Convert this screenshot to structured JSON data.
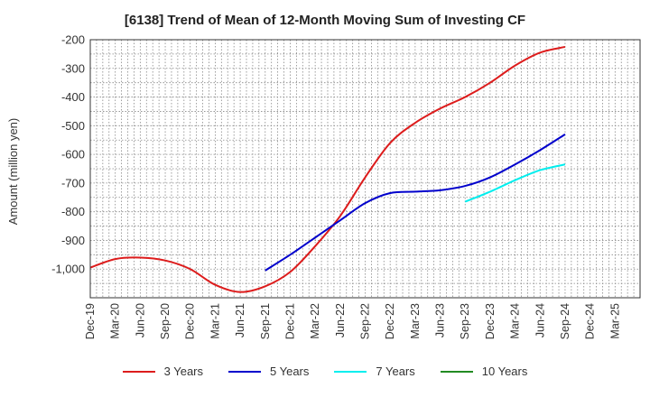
{
  "chart_data": {
    "type": "line",
    "title": "[6138]  Trend of Mean of 12-Month Moving Sum of Investing CF",
    "xlabel": "",
    "ylabel": "Amount (million yen)",
    "ylim": [
      -1100,
      -200
    ],
    "yticks": [
      {
        "value": -200,
        "label": "-200"
      },
      {
        "value": -300,
        "label": "-300"
      },
      {
        "value": -400,
        "label": "-400"
      },
      {
        "value": -500,
        "label": "-500"
      },
      {
        "value": -600,
        "label": "-600"
      },
      {
        "value": -700,
        "label": "-700"
      },
      {
        "value": -800,
        "label": "-800"
      },
      {
        "value": -900,
        "label": "-900"
      },
      {
        "value": -1000,
        "label": "-1,000"
      }
    ],
    "categories": [
      "Dec-19",
      "Mar-20",
      "Jun-20",
      "Sep-20",
      "Dec-20",
      "Mar-21",
      "Jun-21",
      "Sep-21",
      "Dec-21",
      "Mar-22",
      "Jun-22",
      "Sep-22",
      "Dec-22",
      "Mar-23",
      "Jun-23",
      "Sep-23",
      "Dec-23",
      "Mar-24",
      "Jun-24",
      "Sep-24",
      "Dec-24",
      "Mar-25"
    ],
    "grid": true,
    "legend_position": "bottom",
    "series": [
      {
        "name": "3 Years",
        "color": "#dd1c1c",
        "values": [
          -995,
          -965,
          -960,
          -970,
          -1000,
          -1055,
          -1080,
          -1060,
          -1010,
          -920,
          -815,
          -680,
          -560,
          -490,
          -440,
          -400,
          -350,
          -290,
          -245,
          -225,
          null,
          null
        ]
      },
      {
        "name": "5 Years",
        "color": "#0000cc",
        "values": [
          null,
          null,
          null,
          null,
          null,
          null,
          null,
          -1005,
          -950,
          -890,
          -830,
          -770,
          -735,
          -730,
          -725,
          -710,
          -680,
          -635,
          -585,
          -530,
          null,
          null
        ]
      },
      {
        "name": "7 Years",
        "color": "#00eeee",
        "values": [
          null,
          null,
          null,
          null,
          null,
          null,
          null,
          null,
          null,
          null,
          null,
          null,
          null,
          null,
          null,
          -765,
          -730,
          -690,
          -655,
          -635,
          null,
          null
        ]
      },
      {
        "name": "10 Years",
        "color": "#228b22",
        "values": [
          null,
          null,
          null,
          null,
          null,
          null,
          null,
          null,
          null,
          null,
          null,
          null,
          null,
          null,
          null,
          null,
          null,
          null,
          null,
          null,
          null,
          null
        ]
      }
    ]
  }
}
